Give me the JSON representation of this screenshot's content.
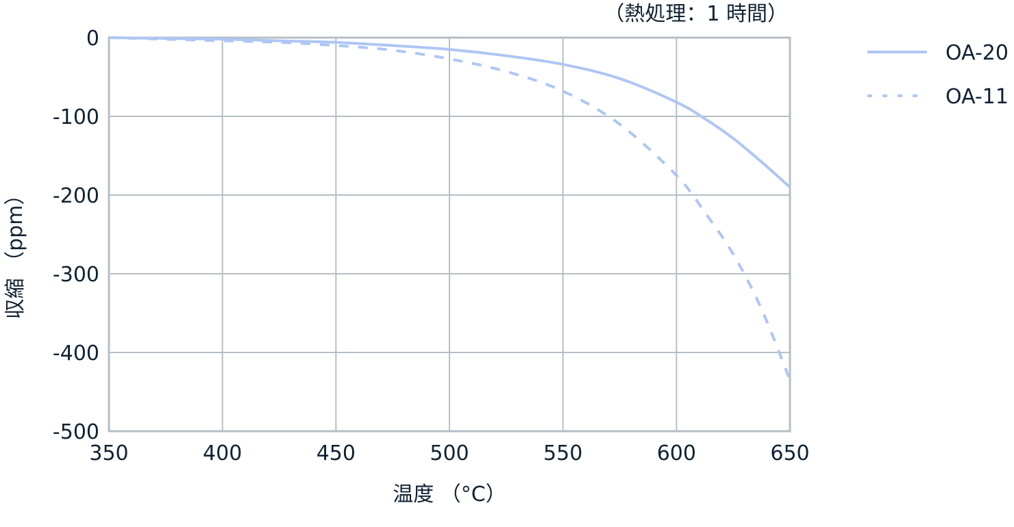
{
  "chart_data": {
    "type": "line",
    "title": "",
    "annotation": "（熱処理：1 時間）",
    "xlabel": "温度 （°C）",
    "ylabel": "収縮 （ppm）",
    "xlim": [
      350,
      650
    ],
    "ylim": [
      -500,
      0
    ],
    "xticks": [
      350,
      400,
      450,
      500,
      550,
      600,
      650
    ],
    "yticks": [
      0,
      -100,
      -200,
      -300,
      -400,
      -500
    ],
    "grid": true,
    "legend_position": "right-top",
    "x": [
      350,
      375,
      400,
      425,
      450,
      475,
      500,
      525,
      550,
      575,
      600,
      612.5,
      625,
      637.5,
      650
    ],
    "series": [
      {
        "name": "OA-20",
        "style": "solid",
        "color": "#aec6f4",
        "values": [
          0,
          -1,
          -2,
          -4,
          -6,
          -10,
          -15,
          -23,
          -34,
          -52,
          -82,
          -103,
          -128,
          -158,
          -190
        ]
      },
      {
        "name": "OA-11",
        "style": "dashed",
        "color": "#aec6f4",
        "values": [
          0,
          -2,
          -4,
          -6,
          -10,
          -16,
          -27,
          -43,
          -68,
          -110,
          -175,
          -222,
          -275,
          -345,
          -435
        ]
      }
    ]
  },
  "colors": {
    "grid": "#b6bec5",
    "text": "#0f2233",
    "series": "#aec6f4"
  }
}
